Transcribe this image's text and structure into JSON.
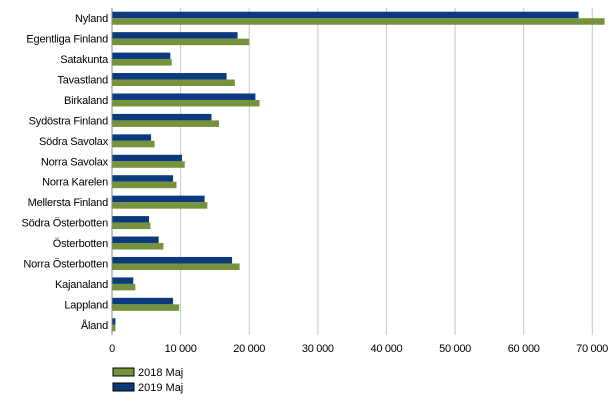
{
  "chart_data": {
    "type": "bar",
    "orientation": "horizontal",
    "categories": [
      "Nyland",
      "Egentliga Finland",
      "Satakunta",
      "Tavastland",
      "Birkaland",
      "Sydöstra Finland",
      "Södra Savolax",
      "Norra Savolax",
      "Norra Karelen",
      "Mellersta Finland",
      "Södra Österbotten",
      "Österbotten",
      "Norra Österbotten",
      "Kajanaland",
      "Lappland",
      "Åland"
    ],
    "series": [
      {
        "name": "2019 Maj",
        "color": "#0b3a7d",
        "values": [
          68000,
          18300,
          8500,
          16700,
          20900,
          14500,
          5700,
          10200,
          8900,
          13500,
          5400,
          6800,
          17500,
          3100,
          8900,
          500
        ]
      },
      {
        "name": "2018 Maj",
        "color": "#76923c",
        "values": [
          71800,
          20000,
          8700,
          17900,
          21500,
          15600,
          6200,
          10600,
          9400,
          13900,
          5600,
          7500,
          18600,
          3400,
          9800,
          500
        ]
      }
    ],
    "xlim": [
      0,
      72000
    ],
    "xticks": [
      0,
      10000,
      20000,
      30000,
      40000,
      50000,
      60000,
      70000
    ],
    "xtick_labels": [
      "0",
      "10 000",
      "20 000",
      "30 000",
      "40 000",
      "50 000",
      "60 000",
      "70 000"
    ],
    "grid": "vertical",
    "legend": {
      "position": "bottom-left",
      "entries": [
        "2018 Maj",
        "2019 Maj"
      ]
    }
  }
}
